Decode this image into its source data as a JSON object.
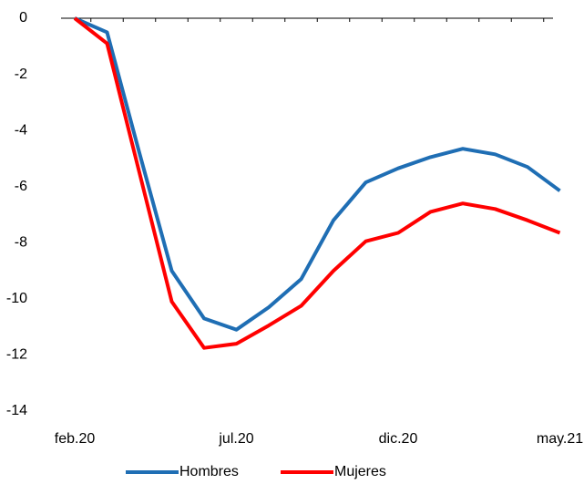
{
  "chart_data": {
    "type": "line",
    "x": [
      "feb.20",
      "mar.20",
      "abr.20",
      "may.20",
      "jun.20",
      "jul.20",
      "ago.20",
      "sep.20",
      "oct.20",
      "nov.20",
      "dic.20",
      "ene.21",
      "feb.21",
      "mar.21",
      "abr.21",
      "may.21"
    ],
    "x_tick_labels": [
      "feb.20",
      "jul.20",
      "dic.20",
      "may.21"
    ],
    "y_tick_labels": [
      "0",
      "-2",
      "-4",
      "-6",
      "-8",
      "-10",
      "-12",
      "-14"
    ],
    "ylim": [
      -14,
      0
    ],
    "y_ticks": [
      0,
      -2,
      -4,
      -6,
      -8,
      -10,
      -12,
      -14
    ],
    "grid": false,
    "legend_position": "bottom",
    "series": [
      {
        "name": "Hombres",
        "color": "#1F6EB4",
        "values": [
          0,
          -0.5,
          -4.8,
          -9.0,
          -10.7,
          -11.1,
          -10.3,
          -9.3,
          -7.2,
          -5.85,
          -5.35,
          -4.95,
          -4.65,
          -4.85,
          -5.3,
          -6.15
        ]
      },
      {
        "name": "Mujeres",
        "color": "#FF0000",
        "values": [
          0,
          -0.9,
          -5.5,
          -10.1,
          -11.75,
          -11.6,
          -10.95,
          -10.25,
          -9.0,
          -7.95,
          -7.65,
          -6.9,
          -6.6,
          -6.8,
          -7.2,
          -7.65
        ]
      }
    ]
  }
}
